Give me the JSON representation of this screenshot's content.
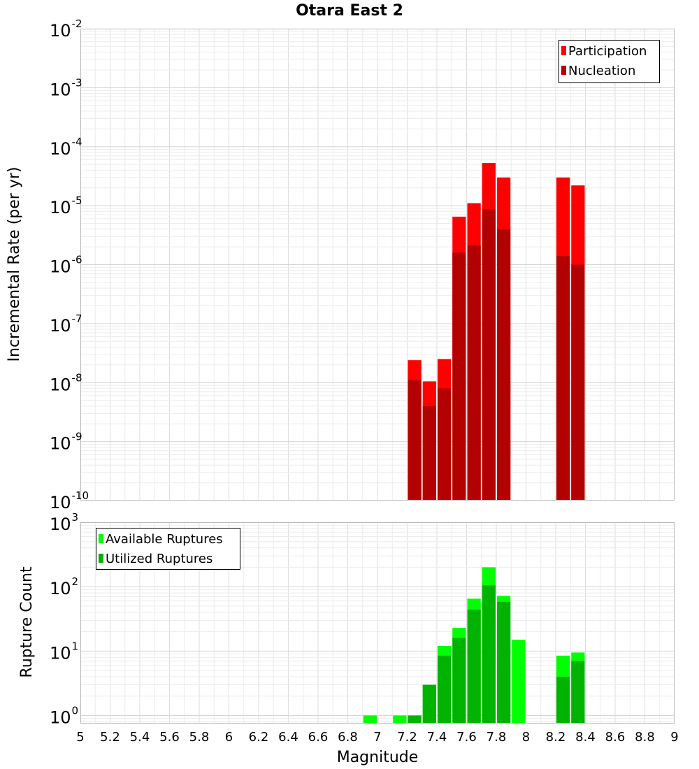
{
  "chart_data": [
    {
      "type": "bar",
      "title": "Otara East 2",
      "ylabel": "Incremental Rate (per yr)",
      "yscale": "log",
      "ylim": [
        1e-10,
        0.01
      ],
      "xlim": [
        5,
        9
      ],
      "grid": true,
      "legend_position": "top-right",
      "bin_width": 0.1,
      "series": [
        {
          "name": "Participation",
          "color": "#ff0000",
          "x": [
            7.25,
            7.35,
            7.45,
            7.55,
            7.65,
            7.75,
            7.85,
            8.25,
            8.35
          ],
          "values": [
            2.4e-08,
            1.05e-08,
            2.5e-08,
            6.5e-06,
            1.1e-05,
            5.3e-05,
            3e-05,
            3e-05,
            2.2e-05
          ]
        },
        {
          "name": "Nucleation",
          "color": "#b30000",
          "x": [
            7.25,
            7.35,
            7.45,
            7.55,
            7.65,
            7.75,
            7.85,
            8.25,
            8.35
          ],
          "values": [
            1.1e-08,
            4e-09,
            8e-09,
            1.6e-06,
            2.1e-06,
            8.7e-06,
            4e-06,
            1.4e-06,
            1e-06
          ]
        }
      ]
    },
    {
      "type": "bar",
      "ylabel": "Rupture Count",
      "xlabel": "Magnitude",
      "yscale": "log",
      "ylim": [
        0.75,
        1000
      ],
      "xlim": [
        5,
        9
      ],
      "grid": true,
      "legend_position": "top-left",
      "bin_width": 0.1,
      "x_ticks": [
        "5",
        "5.2",
        "5.4",
        "5.6",
        "5.8",
        "6",
        "6.2",
        "6.4",
        "6.6",
        "6.8",
        "7",
        "7.2",
        "7.4",
        "7.6",
        "7.8",
        "8",
        "8.2",
        "8.4",
        "8.6",
        "8.8",
        "9"
      ],
      "series": [
        {
          "name": "Available Ruptures",
          "color": "#00ff00",
          "x": [
            6.95,
            7.15,
            7.25,
            7.35,
            7.45,
            7.55,
            7.65,
            7.75,
            7.85,
            7.95,
            8.25,
            8.35
          ],
          "values": [
            1,
            1,
            1,
            3,
            12,
            23,
            65,
            200,
            72,
            15,
            8.5,
            9.5
          ]
        },
        {
          "name": "Utilized Ruptures",
          "color": "#00b300",
          "x": [
            7.25,
            7.35,
            7.45,
            7.55,
            7.65,
            7.75,
            7.85,
            8.25,
            8.35
          ],
          "values": [
            1,
            3,
            8.5,
            16,
            44,
            105,
            58,
            4,
            7
          ]
        }
      ]
    }
  ]
}
